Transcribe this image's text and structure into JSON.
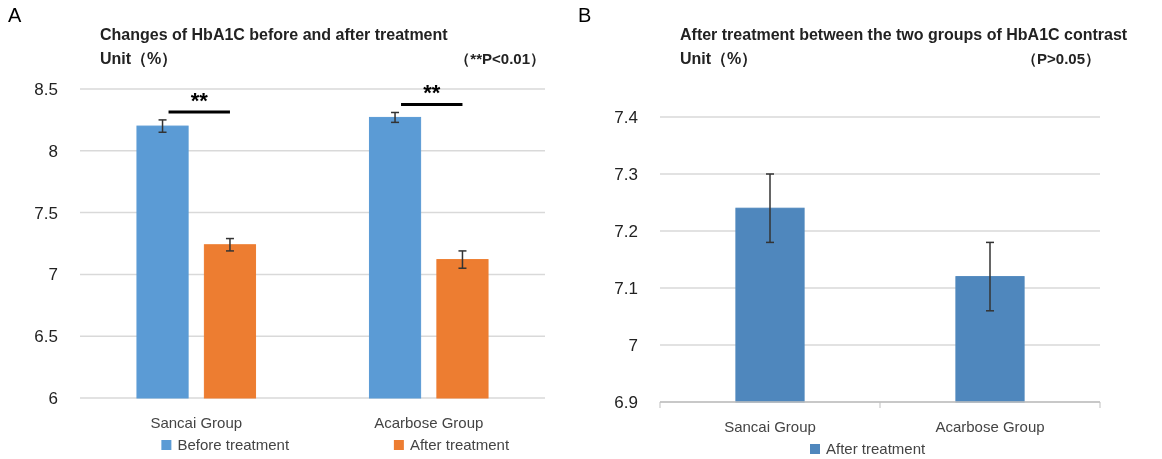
{
  "chart_data": [
    {
      "type": "bar",
      "title": "Changes of HbA1C before and after treatment",
      "subtitle": "Unit（%）",
      "annotations": [
        "A",
        "（**P<0.01）",
        "**",
        "**"
      ],
      "categories": [
        "Sancai Group",
        "Acarbose Group"
      ],
      "series": [
        {
          "name": "Before treatment",
          "color": "#5b9bd5",
          "values": [
            8.2,
            8.27
          ],
          "errors": [
            0.05,
            0.04
          ]
        },
        {
          "name": "After treatment",
          "color": "#ed7d31",
          "values": [
            7.24,
            7.12
          ],
          "errors": [
            0.05,
            0.07
          ]
        }
      ],
      "ylim": [
        6,
        8.5
      ],
      "yticks": [
        6,
        6.5,
        7,
        7.5,
        8,
        8.5
      ],
      "grid": "y",
      "legend": "bottom"
    },
    {
      "type": "bar",
      "title": "After treatment between the two groups of HbA1C contrast",
      "subtitle": "Unit（%）",
      "annotations": [
        "B",
        "（P>0.05）"
      ],
      "categories": [
        "Sancai Group",
        "Acarbose Group"
      ],
      "series": [
        {
          "name": "After treatment",
          "color": "#4f87bd",
          "values": [
            7.24,
            7.12
          ],
          "errors": [
            0.06,
            0.06
          ]
        }
      ],
      "ylim": [
        6.9,
        7.4
      ],
      "yticks": [
        6.9,
        7,
        7.1,
        7.2,
        7.3,
        7.4
      ],
      "grid": "y",
      "legend": "bottom"
    }
  ]
}
